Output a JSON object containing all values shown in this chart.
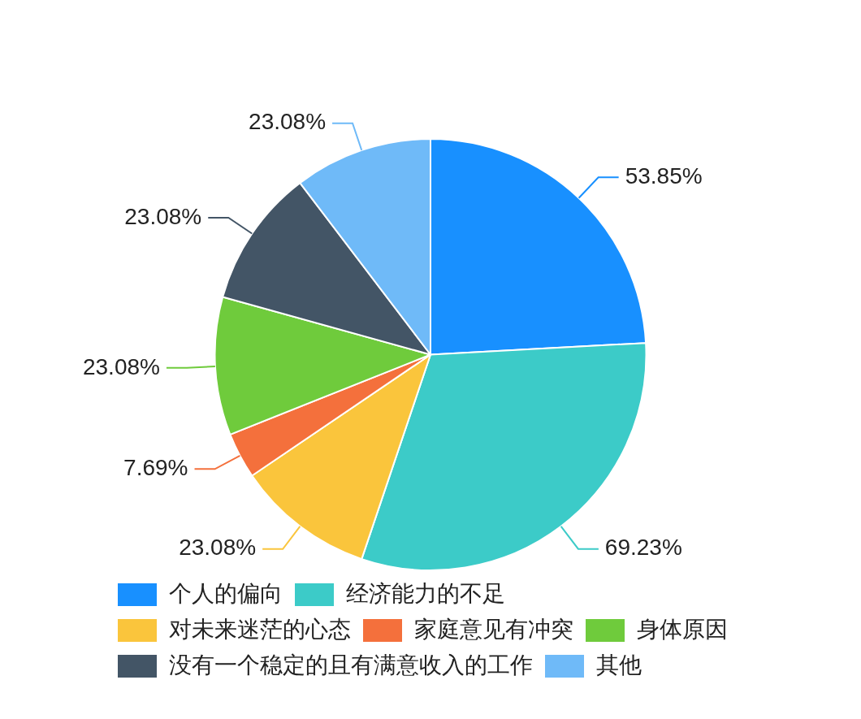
{
  "chart_data": {
    "type": "pie",
    "categories": [
      "个人的偏向",
      "经济能力的不足",
      "对未来迷茫的心态",
      "家庭意见有冲突",
      "身体原因",
      "没有一个稳定的且有满意收入的工作",
      "其他"
    ],
    "values": [
      53.85,
      69.23,
      23.08,
      7.69,
      23.08,
      23.08,
      23.08
    ],
    "colors": [
      "#1890ff",
      "#3ccbc8",
      "#fac53c",
      "#f4703c",
      "#6fcb3c",
      "#435566",
      "#6fbaf8"
    ],
    "data_labels": true,
    "value_labels": [
      "53.85%",
      "69.23%",
      "23.08%",
      "7.69%",
      "23.08%",
      "23.08%",
      "23.08%"
    ],
    "legend": "bottom"
  }
}
